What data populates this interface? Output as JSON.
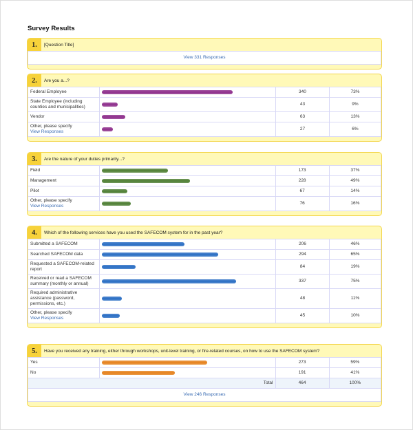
{
  "title": "Survey Results",
  "colors": {
    "q2": "#8e2f8c",
    "q3": "#4f7f34",
    "q4": "#2a6ec4",
    "q5": "#e5821e",
    "panel": "#fff9b8",
    "number": "#f7d23a"
  },
  "questions": [
    {
      "number": "1.",
      "text": "[Question Title]",
      "view_link": "View 331 Responses",
      "rows": []
    },
    {
      "number": "2.",
      "text": "Are you a...?",
      "color": "#8e2f8c",
      "rows": [
        {
          "label": "Federal Employee",
          "count": "340",
          "percent": "73%",
          "value": 73
        },
        {
          "label": "State Employee (including counties and municipalities)",
          "count": "43",
          "percent": "9%",
          "value": 9
        },
        {
          "label": "Vendor",
          "count": "63",
          "percent": "13%",
          "value": 13
        },
        {
          "label": "Other, please specify",
          "link": "View Responses",
          "count": "27",
          "percent": "6%",
          "value": 6
        }
      ]
    },
    {
      "number": "3.",
      "text": "Are the nature of your duties primarily...?",
      "color": "#4f7f34",
      "rows": [
        {
          "label": "Field",
          "count": "173",
          "percent": "37%",
          "value": 37
        },
        {
          "label": "Management",
          "count": "228",
          "percent": "49%",
          "value": 49
        },
        {
          "label": "Pilot",
          "count": "67",
          "percent": "14%",
          "value": 14
        },
        {
          "label": "Other, please specify",
          "link": "View Responses",
          "count": "76",
          "percent": "16%",
          "value": 16
        }
      ]
    },
    {
      "number": "4.",
      "text": "Which of the following services have you used the SAFECOM system for in the past year?",
      "color": "#2a6ec4",
      "rows": [
        {
          "label": "Submitted a SAFECOM",
          "count": "206",
          "percent": "46%",
          "value": 46
        },
        {
          "label": "Searched SAFECOM data",
          "count": "294",
          "percent": "65%",
          "value": 65
        },
        {
          "label": "Requested a SAFECOM-related report",
          "count": "84",
          "percent": "19%",
          "value": 19
        },
        {
          "label": "Received or read a SAFECOM summary (monthly or annual)",
          "count": "337",
          "percent": "75%",
          "value": 75
        },
        {
          "label": "Required administrative assistance (password, permissions, etc.)",
          "count": "48",
          "percent": "11%",
          "value": 11
        },
        {
          "label": "Other, please specify",
          "link": "View Responses",
          "count": "45",
          "percent": "10%",
          "value": 10
        }
      ]
    },
    {
      "number": "5.",
      "text": "Have you received any training, either through workshops, unit-level training, or fire-related courses, on how to use the SAFECOM system?",
      "color": "#e5821e",
      "rows": [
        {
          "label": "Yes",
          "count": "273",
          "percent": "59%",
          "value": 59
        },
        {
          "label": "No",
          "count": "191",
          "percent": "41%",
          "value": 41
        }
      ],
      "total": {
        "label": "Total",
        "count": "464",
        "percent": "100%"
      },
      "view_link": "View 246 Responses"
    }
  ]
}
